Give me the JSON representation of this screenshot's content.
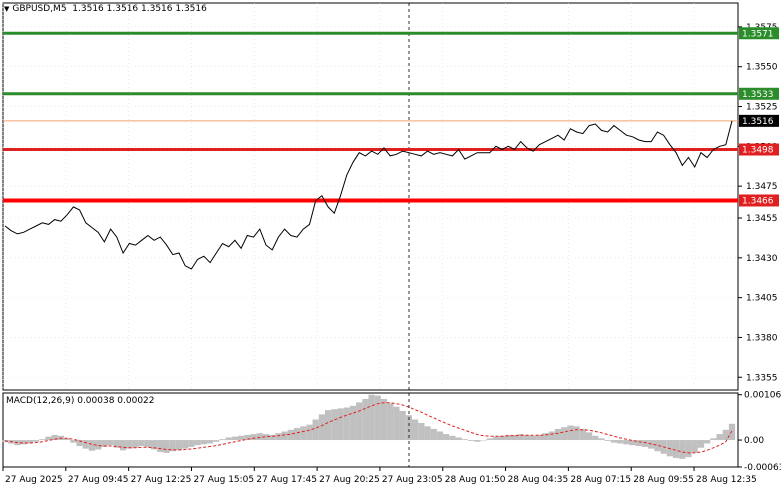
{
  "header": {
    "symbol": "GBPUSD,M5",
    "ohlc": "1.3516 1.3516 1.3516 1.3516",
    "collapse_icon": "triangle-down-icon"
  },
  "macd_panel": {
    "label": "MACD(12,26,9) 0.00038 0.00022",
    "ticks": [
      "0.00106",
      "0.00",
      "-0.00063"
    ]
  },
  "price_axis": {
    "ticks": [
      "1.3575",
      "1.3550",
      "1.3525",
      "1.3500",
      "1.3475",
      "1.3455",
      "1.3430",
      "1.3405",
      "1.3380",
      "1.3355"
    ],
    "tick_values": [
      1.3575,
      1.355,
      1.3525,
      1.35,
      1.3475,
      1.3455,
      1.343,
      1.3405,
      1.338,
      1.3355
    ]
  },
  "levels": [
    {
      "label": "1.3571",
      "value": 1.3571,
      "color": "#2a8c2a",
      "bg": "#2a8c2a"
    },
    {
      "label": "1.3533",
      "value": 1.3533,
      "color": "#2a8c2a",
      "bg": "#2a8c2a"
    },
    {
      "label": "1.3516",
      "value": 1.3516,
      "color": "#f0a070",
      "bg": "#000000"
    },
    {
      "label": "1.3498",
      "value": 1.3498,
      "color": "#e02020",
      "bg": "#e02020"
    },
    {
      "label": "1.3466",
      "value": 1.3466,
      "color": "#ff0000",
      "bg": "#e02020"
    }
  ],
  "time_axis": {
    "labels": [
      "27 Aug 2025",
      "27 Aug 09:45",
      "27 Aug 12:25",
      "27 Aug 15:05",
      "27 Aug 17:45",
      "27 Aug 20:25",
      "27 Aug 23:05",
      "28 Aug 01:50",
      "28 Aug 04:35",
      "28 Aug 07:15",
      "28 Aug 09:55",
      "28 Aug 12:35"
    ]
  },
  "chart_data": {
    "type": "line",
    "title": "",
    "xlabel": "",
    "ylabel": "",
    "ylim": [
      1.3347,
      1.359
    ],
    "price": [
      1.345,
      1.3447,
      1.3445,
      1.3446,
      1.3448,
      1.345,
      1.3452,
      1.3451,
      1.3454,
      1.3453,
      1.3457,
      1.3462,
      1.346,
      1.3452,
      1.3449,
      1.3446,
      1.344,
      1.3448,
      1.3443,
      1.3433,
      1.3439,
      1.3438,
      1.3441,
      1.3444,
      1.3441,
      1.3443,
      1.3438,
      1.3432,
      1.3433,
      1.3425,
      1.3423,
      1.3429,
      1.3431,
      1.3427,
      1.3433,
      1.3439,
      1.3437,
      1.3441,
      1.3436,
      1.3444,
      1.3443,
      1.3448,
      1.3438,
      1.3435,
      1.3443,
      1.3448,
      1.3444,
      1.3443,
      1.3448,
      1.3451,
      1.3466,
      1.3469,
      1.3462,
      1.3458,
      1.3469,
      1.3482,
      1.349,
      1.3496,
      1.3494,
      1.3497,
      1.3495,
      1.3499,
      1.3494,
      1.3495,
      1.3497,
      1.3496,
      1.3495,
      1.3494,
      1.3497,
      1.3495,
      1.3496,
      1.3495,
      1.3494,
      1.3498,
      1.3492,
      1.3494,
      1.3496,
      1.3496,
      1.3496,
      1.35,
      1.3498,
      1.35,
      1.3498,
      1.3503,
      1.3499,
      1.3497,
      1.3501,
      1.3503,
      1.3505,
      1.3507,
      1.3504,
      1.3511,
      1.3509,
      1.3508,
      1.3513,
      1.3514,
      1.351,
      1.3509,
      1.3513,
      1.351,
      1.3507,
      1.3506,
      1.3504,
      1.3503,
      1.3503,
      1.3509,
      1.3507,
      1.3501,
      1.3496,
      1.3488,
      1.3493,
      1.3487,
      1.3496,
      1.3493,
      1.3498,
      1.35,
      1.3501,
      1.3516
    ],
    "macd": [
      -5e-05,
      -8e-05,
      -0.00012,
      -0.0001,
      -8e-05,
      -4e-05,
      2e-05,
      8e-05,
      0.00012,
      0.0001,
      4e-05,
      -6e-05,
      -0.00014,
      -0.0002,
      -0.00025,
      -0.00022,
      -0.00016,
      -0.00012,
      -0.00018,
      -0.00024,
      -0.0002,
      -0.00018,
      -0.00014,
      -0.00016,
      -0.00022,
      -0.00028,
      -0.0003,
      -0.00026,
      -0.00024,
      -0.0002,
      -0.00016,
      -0.00012,
      -0.0001,
      -8e-05,
      -4e-05,
      2e-05,
      6e-05,
      8e-05,
      0.0001,
      0.00012,
      0.00014,
      0.00016,
      0.00014,
      0.00012,
      0.00016,
      0.0002,
      0.00024,
      0.00028,
      0.00032,
      0.00036,
      0.00048,
      0.0006,
      0.0007,
      0.00072,
      0.00074,
      0.00076,
      0.0008,
      0.00088,
      0.00096,
      0.00106,
      0.00104,
      0.00096,
      0.00086,
      0.00078,
      0.00068,
      0.00058,
      0.00048,
      0.0004,
      0.00032,
      0.00026,
      0.0002,
      0.00014,
      0.0001,
      6e-05,
      2e-05,
      -2e-05,
      -4e-05,
      0.0,
      4e-05,
      8e-05,
      0.0001,
      0.00012,
      0.00012,
      0.00014,
      0.00012,
      0.0001,
      0.00012,
      0.00016,
      0.0002,
      0.00026,
      0.0003,
      0.00034,
      0.00032,
      0.00026,
      0.00018,
      0.0001,
      4e-05,
      -2e-05,
      -6e-05,
      -8e-05,
      -0.0001,
      -0.00012,
      -0.00014,
      -0.00016,
      -0.0002,
      -0.00026,
      -0.00032,
      -0.00038,
      -0.00042,
      -0.00044,
      -0.0004,
      -0.0003,
      -0.00018,
      -8e-05,
      4e-05,
      0.00014,
      0.00024,
      0.00038
    ],
    "signal": [
      -2e-05,
      -4e-05,
      -6e-05,
      -7e-05,
      -7e-05,
      -6e-05,
      -4e-05,
      -1e-05,
      2e-05,
      4e-05,
      4e-05,
      2e-05,
      -2e-05,
      -6e-05,
      -0.0001,
      -0.00013,
      -0.00014,
      -0.00014,
      -0.00015,
      -0.00017,
      -0.00018,
      -0.00018,
      -0.00017,
      -0.00017,
      -0.00018,
      -0.0002,
      -0.00022,
      -0.00023,
      -0.00023,
      -0.00022,
      -0.00021,
      -0.00019,
      -0.00017,
      -0.00015,
      -0.00013,
      -0.0001,
      -7e-05,
      -4e-05,
      -1e-05,
      2e-05,
      4e-05,
      6e-05,
      8e-05,
      9e-05,
      0.0001,
      0.00012,
      0.00014,
      0.00017,
      0.0002,
      0.00023,
      0.00028,
      0.00034,
      0.00041,
      0.00047,
      0.00053,
      0.00058,
      0.00063,
      0.00068,
      0.00074,
      0.0008,
      0.00085,
      0.00087,
      0.00087,
      0.00085,
      0.00082,
      0.00077,
      0.00071,
      0.00065,
      0.00058,
      0.00052,
      0.00045,
      0.00039,
      0.00033,
      0.00028,
      0.00023,
      0.00018,
      0.00013,
      0.0001,
      9e-05,
      9e-05,
      9e-05,
      0.0001,
      0.0001,
      0.00011,
      0.00011,
      0.00011,
      0.00011,
      0.00012,
      0.00014,
      0.00016,
      0.00019,
      0.00022,
      0.00024,
      0.00024,
      0.00023,
      0.0002,
      0.00017,
      0.00013,
      9e-05,
      5e-05,
      2e-05,
      -1e-05,
      -4e-05,
      -6e-05,
      -9e-05,
      -0.00012,
      -0.00016,
      -0.0002,
      -0.00024,
      -0.00028,
      -0.0003,
      -0.0003,
      -0.00028,
      -0.00024,
      -0.00018,
      -0.00012,
      -4e-05,
      0.00022
    ],
    "macd_ylim": [
      -0.00063,
      0.0011
    ]
  },
  "colors": {
    "price_line": "#000000",
    "macd_hist": "#c0c0c0",
    "signal_line": "#e02020",
    "grid": "#dcdcdc",
    "axis": "#000000",
    "cursor_line": "#000000"
  }
}
